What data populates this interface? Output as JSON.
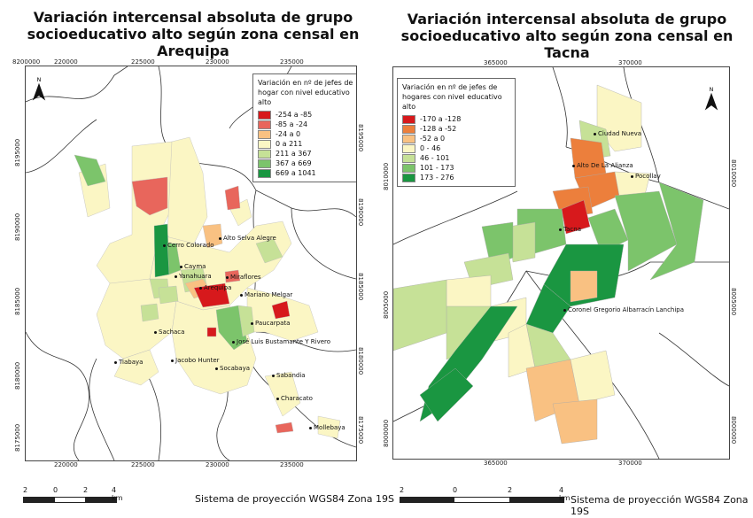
{
  "left_map": {
    "title": "Variación intercensal absoluta de grupo socioeducativo alto según zona censal en Arequipa",
    "x_ticks": [
      "220000",
      "225000",
      "230000",
      "235000"
    ],
    "y_ticks": [
      "8195000",
      "8190000",
      "8185000",
      "8180000",
      "8175000"
    ],
    "corner_tick": "8200000",
    "legend_title": "Variación en nº de jefes de hogar con nivel educativo alto",
    "legend": [
      {
        "label": "-254 a -85",
        "color": "#d7191c"
      },
      {
        "label": "-85 a -24",
        "color": "#e8665c"
      },
      {
        "label": "-24 a 0",
        "color": "#f9c182"
      },
      {
        "label": "0 a 211",
        "color": "#fbf6c4"
      },
      {
        "label": "211 a 367",
        "color": "#c6e197"
      },
      {
        "label": "367 a 669",
        "color": "#7cc46b"
      },
      {
        "label": "669 a 1041",
        "color": "#1a9641"
      }
    ],
    "places": [
      "Cerro Colorado",
      "Alto Selva Alegre",
      "Cayma",
      "Yanahuara",
      "Miraflores",
      "Arequipa",
      "Mariano Melgar",
      "Paucarpata",
      "Sachaca",
      "José Luis Bustamante Y Rivero",
      "Tiabaya",
      "Jacobo Hunter",
      "Socabaya",
      "Sabandia",
      "Characato",
      "Mollebaya"
    ],
    "scale": {
      "labels": [
        "2",
        "0",
        "2",
        "4 km"
      ]
    },
    "projection": "Sistema de proyección WGS84 Zona 19S"
  },
  "right_map": {
    "title": "Variación intercensal absoluta de grupo socioeducativo alto según zona censal en Tacna",
    "x_ticks": [
      "365000",
      "370000"
    ],
    "y_ticks": [
      "8010000",
      "8005000",
      "8000000"
    ],
    "legend_title": "Variación en nº de jefes de hogares con nivel educativo alto",
    "legend": [
      {
        "label": "-170 a -128",
        "color": "#d7191c"
      },
      {
        "label": "-128 a -52",
        "color": "#ec7f3c"
      },
      {
        "label": "-52 a 0",
        "color": "#f9c182"
      },
      {
        "label": "0 - 46",
        "color": "#fbf6c4"
      },
      {
        "label": "46 - 101",
        "color": "#c6e197"
      },
      {
        "label": "101 - 173",
        "color": "#7cc46b"
      },
      {
        "label": "173 - 276",
        "color": "#1a9641"
      }
    ],
    "places": [
      "Ciudad Nueva",
      "Alto De La Alianza",
      "Pocollay",
      "Tacna",
      "Coronel Gregorio Albarracín Lanchipa"
    ],
    "scale": {
      "labels": [
        "2",
        "0",
        "2",
        "4 km"
      ]
    },
    "projection": "Sistema de proyección WGS84 Zona 19S"
  },
  "north_label": "N"
}
